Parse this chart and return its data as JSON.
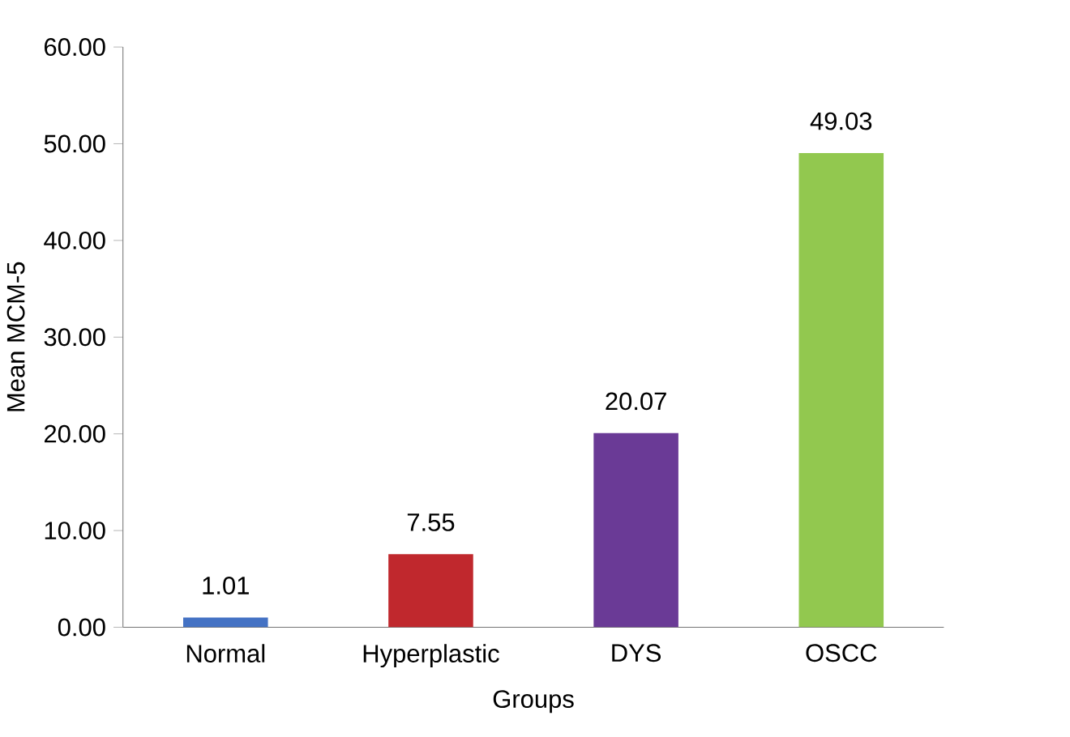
{
  "chart_data": {
    "type": "bar",
    "xlabel": "Groups",
    "ylabel": "Mean MCM-5",
    "categories": [
      "Normal",
      "Hyperplastic",
      "DYS",
      "OSCC"
    ],
    "values": [
      1.01,
      7.55,
      20.07,
      49.03
    ],
    "colors": [
      "#4472c4",
      "#c0282d",
      "#6a3a96",
      "#92c84f"
    ],
    "ylim": [
      0,
      60
    ],
    "yticks": [
      {
        "value": 0,
        "label": "0.00"
      },
      {
        "value": 10,
        "label": "10.00"
      },
      {
        "value": 20,
        "label": "20.00"
      },
      {
        "value": 30,
        "label": "30.00"
      },
      {
        "value": 40,
        "label": "40.00"
      },
      {
        "value": 50,
        "label": "50.00"
      },
      {
        "value": 60,
        "label": "60.00"
      }
    ],
    "data_labels": true,
    "grid": false
  }
}
